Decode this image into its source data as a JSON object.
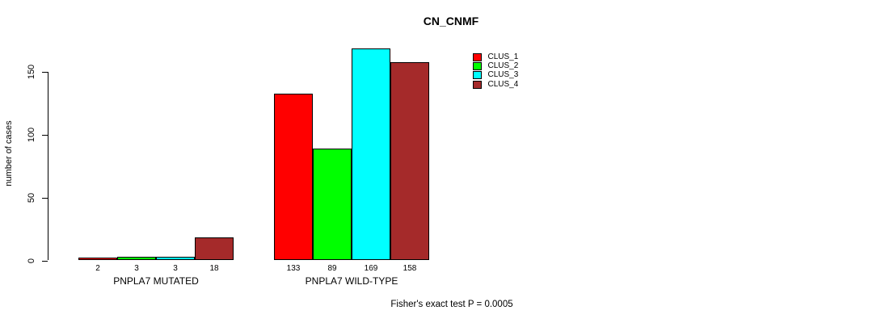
{
  "chart_data": {
    "type": "bar",
    "title": "CN_CNMF",
    "ylabel": "number of cases",
    "xlabel": "",
    "categories": [
      "PNPLA7 MUTATED",
      "PNPLA7 WILD-TYPE"
    ],
    "series": [
      {
        "name": "CLUS_1",
        "color": "#ff0000",
        "values": [
          2,
          133
        ]
      },
      {
        "name": "CLUS_2",
        "color": "#00ff00",
        "values": [
          3,
          89
        ]
      },
      {
        "name": "CLUS_3",
        "color": "#00ffff",
        "values": [
          3,
          169
        ]
      },
      {
        "name": "CLUS_4",
        "color": "#a52a2a",
        "values": [
          18,
          158
        ]
      }
    ],
    "yticks": [
      0,
      50,
      100,
      150
    ],
    "ylim": [
      0,
      170
    ],
    "grid": false,
    "bar_value_labels": true,
    "legend_position": "top-right",
    "legend_entries": [
      "CLUS_1",
      "CLUS_2",
      "CLUS_3",
      "CLUS_4"
    ],
    "annotation": "Fisher's exact test P = 0.0005"
  }
}
